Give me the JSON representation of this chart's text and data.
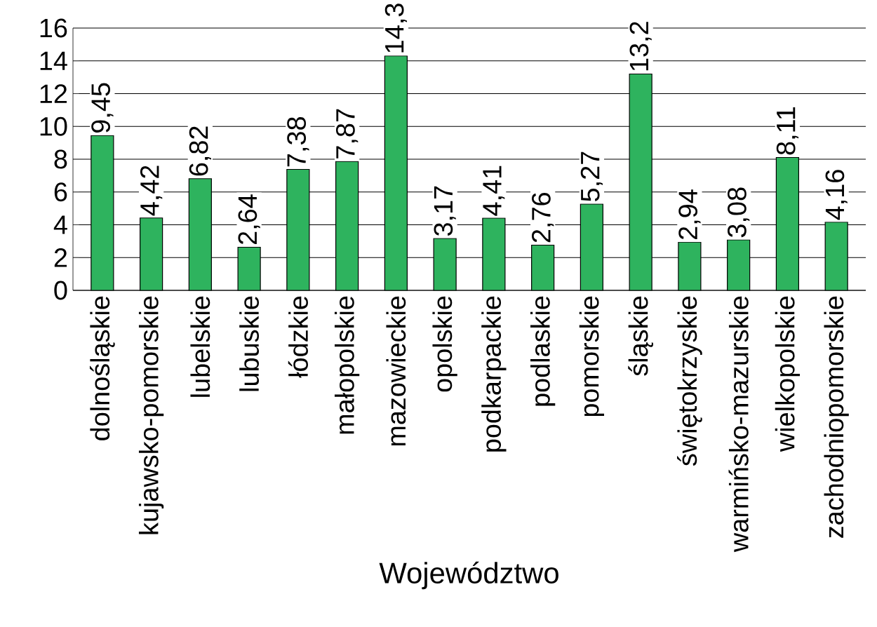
{
  "chart_data": {
    "type": "bar",
    "xlabel": "Województwo",
    "categories": [
      "dolnośląskie",
      "kujawsko-pomorskie",
      "lubelskie",
      "lubuskie",
      "łódzkie",
      "małopolskie",
      "mazowieckie",
      "opolskie",
      "podkarpackie",
      "podlaskie",
      "pomorskie",
      "śląskie",
      "świętokrzyskie",
      "warmińsko-mazurskie",
      "wielkopolskie",
      "zachodniopomorskie"
    ],
    "values": [
      9.45,
      4.42,
      6.82,
      2.64,
      7.38,
      7.87,
      14.3,
      3.17,
      4.41,
      2.76,
      5.27,
      13.2,
      2.94,
      3.08,
      8.11,
      4.16
    ],
    "value_labels": [
      "9,45",
      "4,42",
      "6,82",
      "2,64",
      "7,38",
      "7,87",
      "14,3",
      "3,17",
      "4,41",
      "2,76",
      "5,27",
      "13,2",
      "2,94",
      "3,08",
      "8,11",
      "4,16"
    ],
    "color": "#2eb35e",
    "ylim": [
      0,
      16
    ],
    "yticks": [
      0,
      2,
      4,
      6,
      8,
      10,
      12,
      14,
      16
    ],
    "grid": "y"
  }
}
